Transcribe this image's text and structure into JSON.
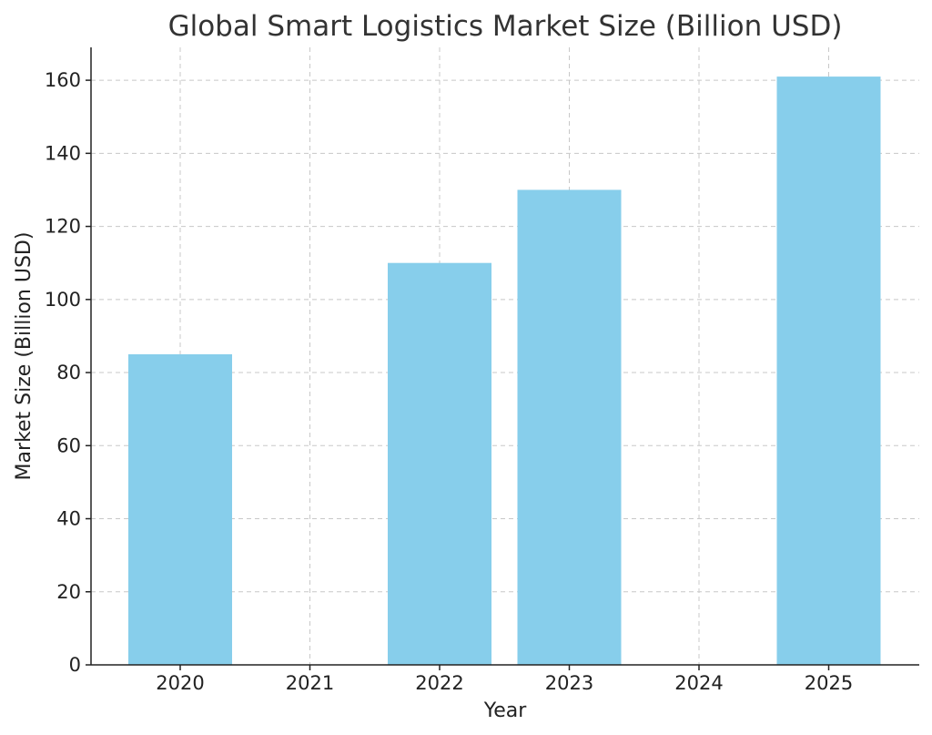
{
  "chart_data": {
    "type": "bar",
    "title": "Global Smart Logistics Market Size (Billion USD)",
    "xlabel": "Year",
    "ylabel": "Market Size (Billion USD)",
    "categories": [
      "2020",
      "2021",
      "2022",
      "2023",
      "2024",
      "2025"
    ],
    "values": [
      85,
      null,
      110,
      130,
      null,
      161
    ],
    "ylim": [
      0,
      169
    ],
    "yticks": [
      0,
      20,
      40,
      60,
      80,
      100,
      120,
      140,
      160
    ],
    "grid": true,
    "bar_color": "#87CEEB"
  }
}
